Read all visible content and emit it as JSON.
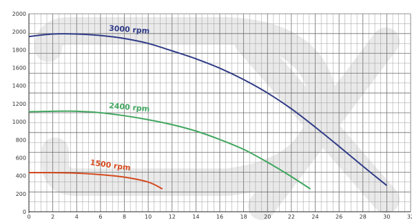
{
  "chart_data": {
    "type": "line",
    "title": "",
    "xlabel": "",
    "ylabel": "",
    "xlim": [
      0,
      32
    ],
    "ylim": [
      0,
      2000
    ],
    "x_ticks": [
      0,
      2,
      4,
      6,
      8,
      10,
      12,
      14,
      16,
      18,
      20,
      22,
      24,
      26,
      28,
      30,
      32
    ],
    "x_tick_labels": [
      "0",
      "2",
      "4",
      "6",
      "8",
      "10",
      "12",
      "14",
      "16",
      "18",
      "20",
      "22",
      "24",
      "26",
      "28",
      "30",
      "32"
    ],
    "y_tick_labels": [
      "0",
      "200",
      "400",
      "600",
      "800",
      "1000",
      "1200",
      "1400",
      "1600",
      "1800",
      "2000",
      "2000"
    ],
    "grid": true,
    "series": [
      {
        "name": "3000 rpm",
        "color": "#2e3a86",
        "x": [
          0,
          2,
          4,
          6,
          8,
          10,
          12,
          14,
          16,
          18,
          20,
          22,
          24,
          26,
          28,
          30
        ],
        "y": [
          1770,
          1795,
          1795,
          1780,
          1750,
          1700,
          1625,
          1545,
          1450,
          1335,
          1200,
          1040,
          855,
          660,
          460,
          265
        ]
      },
      {
        "name": "2400 rpm",
        "color": "#3fa65e",
        "x": [
          0,
          2,
          4,
          6,
          8,
          10,
          12,
          14,
          16,
          18,
          20,
          22,
          23.6
        ],
        "y": [
          1010,
          1015,
          1015,
          1000,
          970,
          930,
          880,
          815,
          730,
          630,
          500,
          355,
          230
        ]
      },
      {
        "name": "1500 rpm",
        "color": "#d44a1e",
        "x": [
          0,
          2,
          4,
          6,
          8,
          10,
          11.2
        ],
        "y": [
          395,
          395,
          390,
          375,
          350,
          300,
          230
        ]
      }
    ]
  }
}
